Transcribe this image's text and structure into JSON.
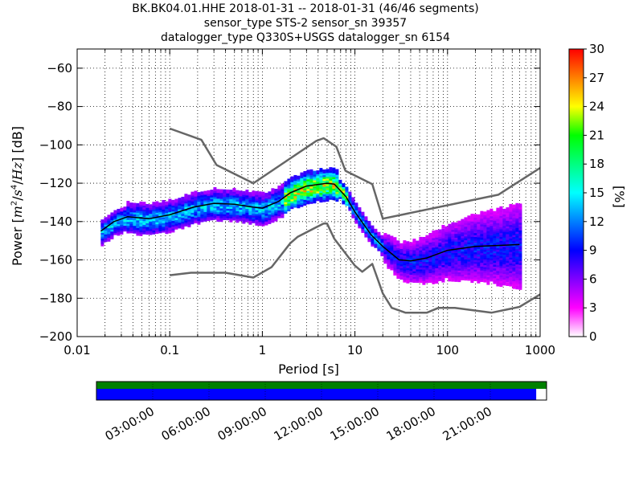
{
  "title": {
    "line1": "BK.BK04.01.HHE   2018-01-31 -- 2018-01-31  (46/46 segments)",
    "line2": "sensor_type STS-2 sensor_sn 39357",
    "line3": "datalogger_type Q330S+USGS datalogger_sn 6154"
  },
  "chart_data": {
    "type": "heatmap",
    "xlabel": "Period [s]",
    "ylabel": "Power [m²/s⁴/Hz] [dB]",
    "xscale": "log",
    "xlim": [
      0.01,
      1000
    ],
    "ylim": [
      -200,
      -50
    ],
    "grid": true,
    "xticks": [
      0.01,
      0.1,
      1,
      10,
      100,
      1000
    ],
    "xtick_labels": [
      "0.01",
      "0.1",
      "1",
      "10",
      "100",
      "1000"
    ],
    "yticks": [
      -200,
      -180,
      -160,
      -140,
      -120,
      -100,
      -80,
      -60
    ],
    "ytick_labels": [
      "−200",
      "−180",
      "−160",
      "−140",
      "−120",
      "−100",
      "−80",
      "−60"
    ],
    "colorbar": {
      "label": "[%]",
      "range": [
        0,
        30
      ],
      "ticks": [
        0,
        3,
        6,
        9,
        12,
        15,
        18,
        21,
        24,
        27,
        30
      ],
      "tick_labels": [
        "0",
        "3",
        "6",
        "9",
        "12",
        "15",
        "18",
        "21",
        "24",
        "27",
        "30"
      ],
      "colors": [
        "#ffffff",
        "#ff00ff",
        "#8000ff",
        "#0000ff",
        "#0080ff",
        "#00ffff",
        "#00ff80",
        "#00ff00",
        "#ffff00",
        "#ff8000",
        "#ff0000"
      ]
    },
    "series": [
      {
        "style": "noise-model",
        "color": "#666666",
        "points": [
          [
            0.1,
            -91.5
          ],
          [
            0.22,
            -97.4
          ],
          [
            0.32,
            -110.5
          ],
          [
            0.8,
            -120
          ],
          [
            3.8,
            -98
          ],
          [
            4.6,
            -96.5
          ],
          [
            6.3,
            -101
          ],
          [
            7.9,
            -113.5
          ],
          [
            15.4,
            -120.5
          ],
          [
            20,
            -138.5
          ],
          [
            354,
            -126
          ],
          [
            1000,
            -112
          ]
        ]
      },
      {
        "style": "noise-model",
        "color": "#666666",
        "points": [
          [
            0.1,
            -168
          ],
          [
            0.17,
            -166.7
          ],
          [
            0.4,
            -166.7
          ],
          [
            0.8,
            -169.2
          ],
          [
            1.26,
            -163.7
          ],
          [
            2,
            -151.3
          ],
          [
            2.4,
            -148
          ],
          [
            3.8,
            -143
          ],
          [
            4.6,
            -141
          ],
          [
            5,
            -141
          ],
          [
            6,
            -149
          ],
          [
            10,
            -163
          ],
          [
            12,
            -166.2
          ],
          [
            15.4,
            -162.1
          ],
          [
            20,
            -177.5
          ],
          [
            25,
            -185
          ],
          [
            35,
            -187.5
          ],
          [
            60,
            -187.5
          ],
          [
            80,
            -185
          ],
          [
            120,
            -185
          ],
          [
            300,
            -187.5
          ],
          [
            600,
            -184.5
          ],
          [
            1000,
            -178
          ]
        ]
      },
      {
        "style": "mode",
        "color": "#000000",
        "points": [
          [
            0.018,
            -145
          ],
          [
            0.025,
            -140
          ],
          [
            0.035,
            -137.5
          ],
          [
            0.06,
            -138.5
          ],
          [
            0.1,
            -136.5
          ],
          [
            0.18,
            -132.5
          ],
          [
            0.3,
            -130.5
          ],
          [
            0.5,
            -131
          ],
          [
            0.8,
            -132.5
          ],
          [
            1,
            -133
          ],
          [
            1.5,
            -129.5
          ],
          [
            2,
            -125
          ],
          [
            3,
            -121.5
          ],
          [
            5,
            -120
          ],
          [
            6,
            -120.5
          ],
          [
            8,
            -127
          ],
          [
            10,
            -135
          ],
          [
            15,
            -147
          ],
          [
            20,
            -153
          ],
          [
            30,
            -160
          ],
          [
            40,
            -160.5
          ],
          [
            60,
            -159
          ],
          [
            100,
            -155
          ],
          [
            200,
            -153
          ],
          [
            600,
            -152
          ]
        ]
      }
    ]
  },
  "time_bar": {
    "ticks": [
      "03:00:00",
      "06:00:00",
      "09:00:00",
      "12:00:00",
      "15:00:00",
      "18:00:00",
      "21:00:00"
    ],
    "coverage_fraction": 0.977,
    "top_color": "#008000",
    "bottom_color": "#0000ff"
  }
}
